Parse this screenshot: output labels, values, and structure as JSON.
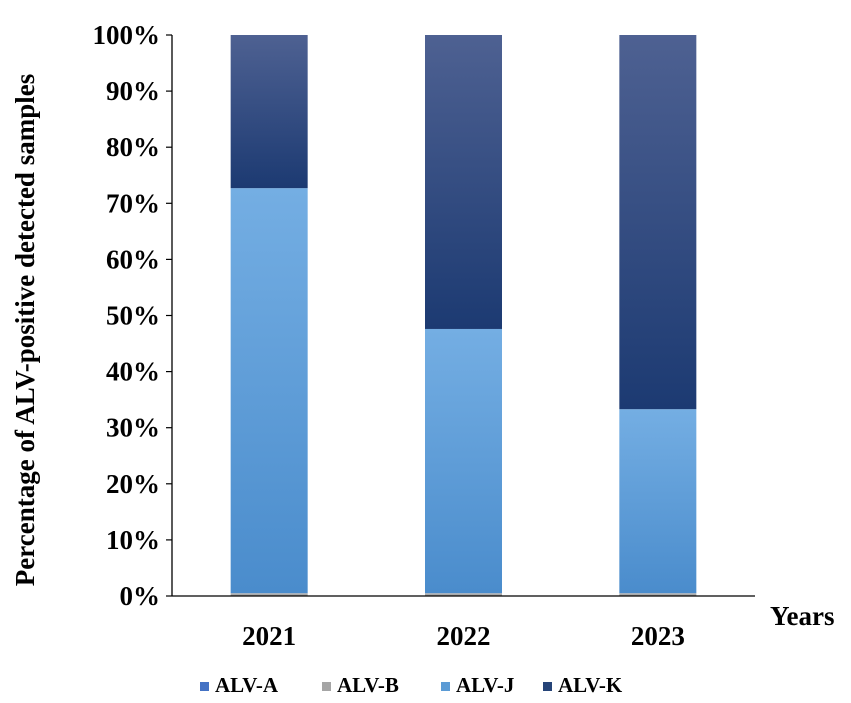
{
  "chart_data": {
    "type": "bar",
    "stacked": true,
    "percent_scale": true,
    "title": "",
    "xlabel": "Years",
    "ylabel": "Percentage of ALV-positive  detected samples",
    "categories": [
      "2021",
      "2022",
      "2023"
    ],
    "series": [
      {
        "name": "ALV-A",
        "values": [
          0,
          0,
          0
        ],
        "color": "#4472c4"
      },
      {
        "name": "ALV-B",
        "values": [
          0.5,
          0.5,
          0.5
        ],
        "color": "#a5a5a5"
      },
      {
        "name": "ALV-J",
        "values": [
          72.2,
          47.1,
          32.8
        ],
        "color": "#5b9bd5"
      },
      {
        "name": "ALV-K",
        "values": [
          27.3,
          52.4,
          66.7
        ],
        "color": "#264478"
      }
    ],
    "ylim": [
      0,
      100
    ],
    "yticks": [
      "0%",
      "10%",
      "20%",
      "30%",
      "40%",
      "50%",
      "60%",
      "70%",
      "80%",
      "90%",
      "100%"
    ],
    "grid": false,
    "legend_position": "bottom"
  }
}
